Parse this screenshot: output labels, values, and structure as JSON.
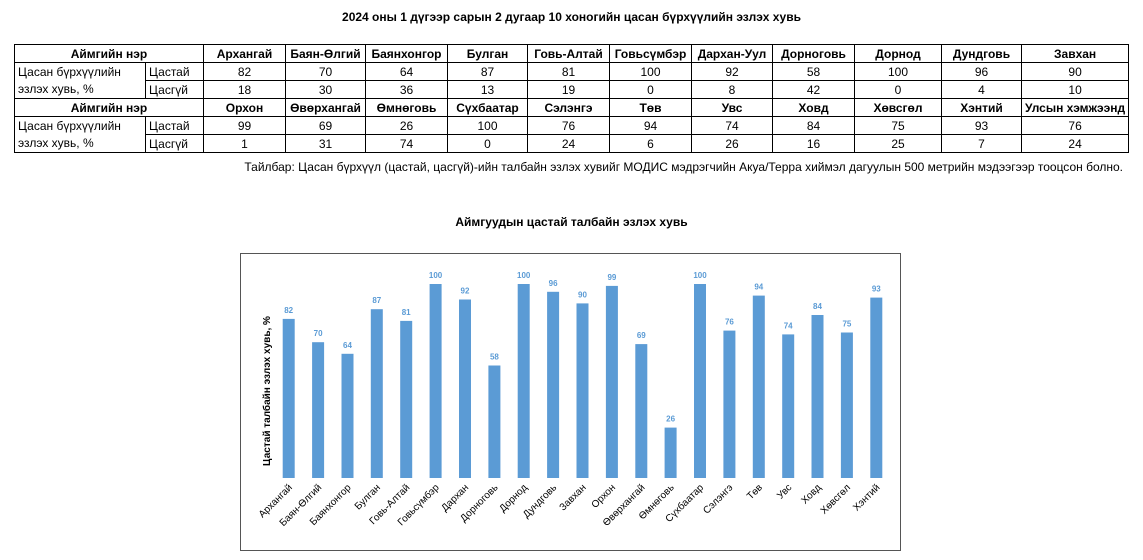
{
  "title": "2024 оны 1 дүгээр сарын 2 дугаар 10 хоногийн цасан бүрхүүлийн эзлэх хувь",
  "table": {
    "header_label": "Аймгийн нэр",
    "row_label_1": "Цасан бүрхүүлийн",
    "row_label_2": "эзлэх хувь, %",
    "snow_label": "Цастай",
    "nosnow_label": "Цасгүй",
    "blocks": [
      {
        "names": [
          "Архангай",
          "Баян-Өлгий",
          "Баянхонгор",
          "Булган",
          "Говь-Алтай",
          "Говьсүмбэр",
          "Дархан-Уул",
          "Дорноговь",
          "Дорнод",
          "Дундговь",
          "Завхан"
        ],
        "snow": [
          "82",
          "70",
          "64",
          "87",
          "81",
          "100",
          "92",
          "58",
          "100",
          "96",
          "90"
        ],
        "nosnow": [
          "18",
          "30",
          "36",
          "13",
          "19",
          "0",
          "8",
          "42",
          "0",
          "4",
          "10"
        ]
      },
      {
        "names": [
          "Орхон",
          "Өвөрхангай",
          "Өмнөговь",
          "Сүхбаатар",
          "Сэлэнгэ",
          "Төв",
          "Увс",
          "Ховд",
          "Хөвсгөл",
          "Хэнтий",
          "Улсын хэмжээнд"
        ],
        "snow": [
          "99",
          "69",
          "26",
          "100",
          "76",
          "94",
          "74",
          "84",
          "75",
          "93",
          "76"
        ],
        "nosnow": [
          "1",
          "31",
          "74",
          "0",
          "24",
          "6",
          "26",
          "16",
          "25",
          "7",
          "24"
        ]
      }
    ]
  },
  "note": "Тайлбар: Цасан бүрхүүл (цастай, цасгүй)-ийн талбайн эзлэх хувийг МОДИС мэдрэгчийн Акуа/Терра хиймэл дагуулын 500 метрийн мэдээгээр тооцсон болно.",
  "chart_data": {
    "type": "bar",
    "title": "Аймгуудын цастай талбайн эзлэх хувь",
    "ylabel": "Цастай талбайн эзлэх хувь, %",
    "xlabel": "",
    "ylim": [
      0,
      100
    ],
    "grid": false,
    "bar_color": "#5b9bd5",
    "categories": [
      "Архангай",
      "Баян-Өлгий",
      "Баянхонгор",
      "Булган",
      "Говь-Алтай",
      "Говьсүмбэр",
      "Дархан",
      "Дорноговь",
      "Дорнод",
      "Дундговь",
      "Завхан",
      "Орхон",
      "Өвөрхангай",
      "Өмнөговь",
      "Сүхбаатар",
      "Сэлэнгэ",
      "Төв",
      "Увс",
      "Ховд",
      "Хөвсгөл",
      "Хэнтий"
    ],
    "values": [
      82,
      70,
      64,
      87,
      81,
      100,
      92,
      58,
      100,
      96,
      90,
      99,
      69,
      26,
      100,
      76,
      94,
      74,
      84,
      75,
      93
    ]
  }
}
